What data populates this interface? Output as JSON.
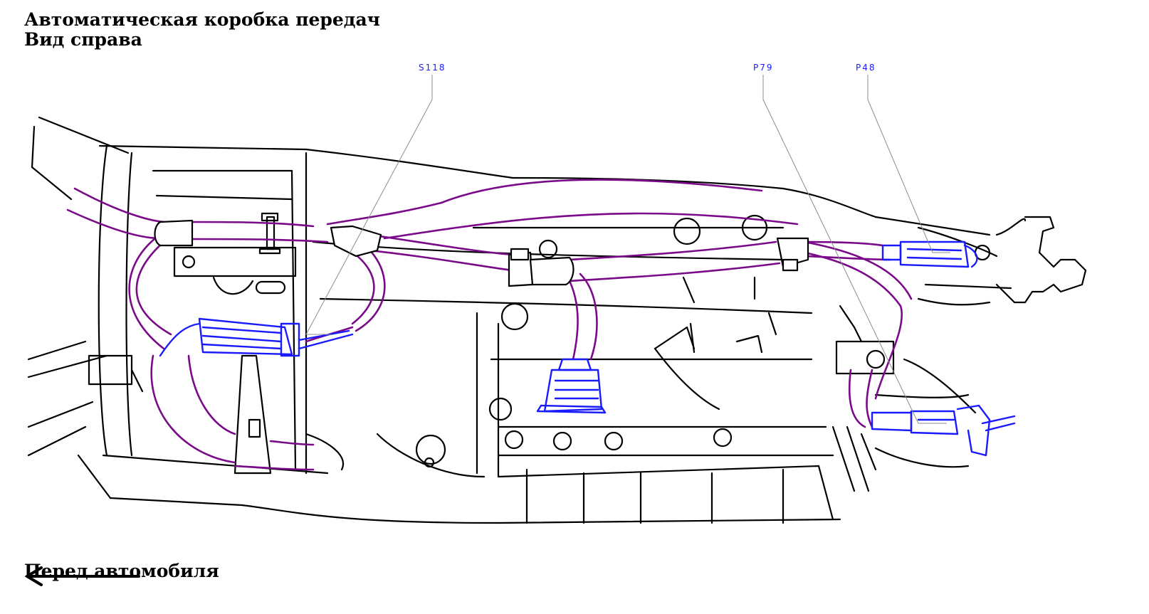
{
  "title": {
    "line1": "Автоматическая коробка передач",
    "line2": "Вид справа"
  },
  "front_label": "Перед автомобиля",
  "callouts": [
    {
      "id": "s118",
      "label": "S118"
    },
    {
      "id": "p79",
      "label": "P79"
    },
    {
      "id": "p48",
      "label": "P48"
    }
  ],
  "colors": {
    "outline": "#000000",
    "harness": "#7a0a8a",
    "connector": "#1a1aff",
    "callout_text": "#1a1aff",
    "leader": "#8c8c8c"
  }
}
